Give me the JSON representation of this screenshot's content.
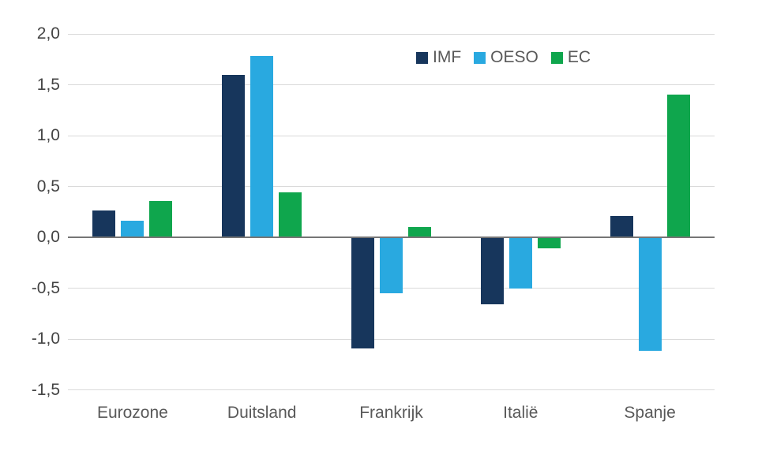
{
  "chart_data": {
    "type": "bar",
    "title": "",
    "xlabel": "",
    "ylabel": "",
    "categories": [
      "Eurozone",
      "Duitsland",
      "Frankrijk",
      "Italië",
      "Spanje"
    ],
    "series": [
      {
        "name": "IMF",
        "color": "#17365C",
        "values": [
          0.26,
          1.6,
          -1.09,
          -0.66,
          0.21
        ]
      },
      {
        "name": "OESO",
        "color": "#29A9E0",
        "values": [
          0.16,
          1.78,
          -0.55,
          -0.5,
          -1.12
        ]
      },
      {
        "name": "EC",
        "color": "#0FA64D",
        "values": [
          0.36,
          0.44,
          0.1,
          -0.11,
          1.4
        ]
      }
    ],
    "y_axis": {
      "min": -1.5,
      "max": 2.0,
      "tick_step": 0.5,
      "tick_values": [
        2.0,
        1.5,
        1.0,
        0.5,
        0.0,
        -0.5,
        -1.0,
        -1.5
      ],
      "tick_labels": [
        "2,0",
        "1,5",
        "1,0",
        "0,5",
        "0,0",
        "-0,5",
        "-1,0",
        "-1,5"
      ],
      "decimal_separator": ","
    },
    "legend": {
      "position": "top-center",
      "items": [
        "IMF",
        "OESO",
        "EC"
      ]
    },
    "grid": true,
    "colors": {
      "background": "#FFFFFF",
      "gridline": "#D9D9D9",
      "zero_line": "#757575",
      "tick_label": "#444444",
      "category_label": "#595959",
      "legend_label": "#595959"
    }
  }
}
